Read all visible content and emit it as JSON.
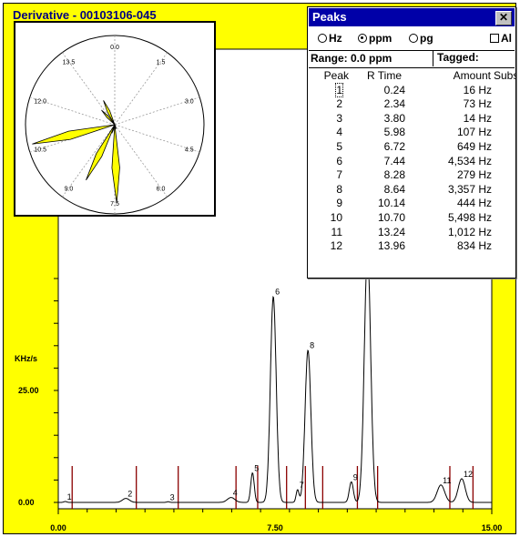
{
  "chart_window": {
    "title": "Derivative - 00103106-045"
  },
  "colors": {
    "chart_background": "#ffff00",
    "plot_background": "#ffffff",
    "trace": "#000000",
    "peak_marker": "#8b0000",
    "titlebar": "#0000a8"
  },
  "chart_data": [
    {
      "type": "line",
      "title": "",
      "xlabel": "",
      "ylabel": "KHz/s",
      "x_tick_labels": [
        "0.00",
        "7.50",
        "15.00"
      ],
      "y_tick_labels": [
        "0.00",
        "25.00"
      ],
      "xlim": [
        0,
        15
      ],
      "grid": false,
      "peaks": [
        {
          "label": "1",
          "x": 0.24,
          "y": 0.2
        },
        {
          "label": "2",
          "x": 2.34,
          "y": 0.9
        },
        {
          "label": "3",
          "x": 3.8,
          "y": 0.15
        },
        {
          "label": "4",
          "x": 5.98,
          "y": 1.1
        },
        {
          "label": "5",
          "x": 6.72,
          "y": 6.6
        },
        {
          "label": "6",
          "x": 7.44,
          "y": 46.0
        },
        {
          "label": "7",
          "x": 8.28,
          "y": 2.8
        },
        {
          "label": "8",
          "x": 8.64,
          "y": 34.0
        },
        {
          "label": "9",
          "x": 10.14,
          "y": 4.6
        },
        {
          "label": "10",
          "x": 10.7,
          "y": 56.0
        },
        {
          "label": "11",
          "x": 13.24,
          "y": 3.9
        },
        {
          "label": "12",
          "x": 13.96,
          "y": 5.3
        }
      ],
      "peak_markers_x": [
        0.48,
        2.7,
        4.15,
        6.15,
        6.9,
        7.9,
        8.55,
        9.15,
        10.35,
        11.05,
        13.55,
        14.35
      ]
    },
    {
      "type": "radar",
      "title": "",
      "angle_labels": [
        "0.0",
        "1.5",
        "3.0",
        "4.5",
        "6.0",
        "7.5",
        "9.0",
        "10.5",
        "12.0",
        "13.5"
      ],
      "angle_range": [
        0,
        15
      ],
      "lobes": [
        {
          "angle": 6.72,
          "r": 0.05
        },
        {
          "angle": 7.44,
          "r": 0.88
        },
        {
          "angle": 8.28,
          "r": 0.1
        },
        {
          "angle": 8.64,
          "r": 0.7
        },
        {
          "angle": 10.7,
          "r": 0.95
        },
        {
          "angle": 13.24,
          "r": 0.22
        },
        {
          "angle": 13.96,
          "r": 0.3
        }
      ]
    }
  ],
  "peaks_window": {
    "title": "Peaks",
    "close_label": "✕",
    "units": [
      {
        "label": "Hz",
        "selected": false
      },
      {
        "label": "ppm",
        "selected": true
      },
      {
        "label": "pg",
        "selected": false
      }
    ],
    "alarm_label": "Al",
    "range_label": "Range: 0.0 ppm",
    "tagged_label": "Tagged:",
    "columns": [
      "Peak",
      "R Time",
      "Amount",
      "Substa"
    ],
    "rows": [
      {
        "peak": "1",
        "rtime": "0.24",
        "amount": "16 Hz"
      },
      {
        "peak": "2",
        "rtime": "2.34",
        "amount": "73 Hz"
      },
      {
        "peak": "3",
        "rtime": "3.80",
        "amount": "14 Hz"
      },
      {
        "peak": "4",
        "rtime": "5.98",
        "amount": "107 Hz"
      },
      {
        "peak": "5",
        "rtime": "6.72",
        "amount": "649 Hz"
      },
      {
        "peak": "6",
        "rtime": "7.44",
        "amount": "4,534 Hz"
      },
      {
        "peak": "7",
        "rtime": "8.28",
        "amount": "279 Hz"
      },
      {
        "peak": "8",
        "rtime": "8.64",
        "amount": "3,357 Hz"
      },
      {
        "peak": "9",
        "rtime": "10.14",
        "amount": "444 Hz"
      },
      {
        "peak": "10",
        "rtime": "10.70",
        "amount": "5,498 Hz"
      },
      {
        "peak": "11",
        "rtime": "13.24",
        "amount": "1,012 Hz"
      },
      {
        "peak": "12",
        "rtime": "13.96",
        "amount": "834 Hz"
      }
    ]
  }
}
